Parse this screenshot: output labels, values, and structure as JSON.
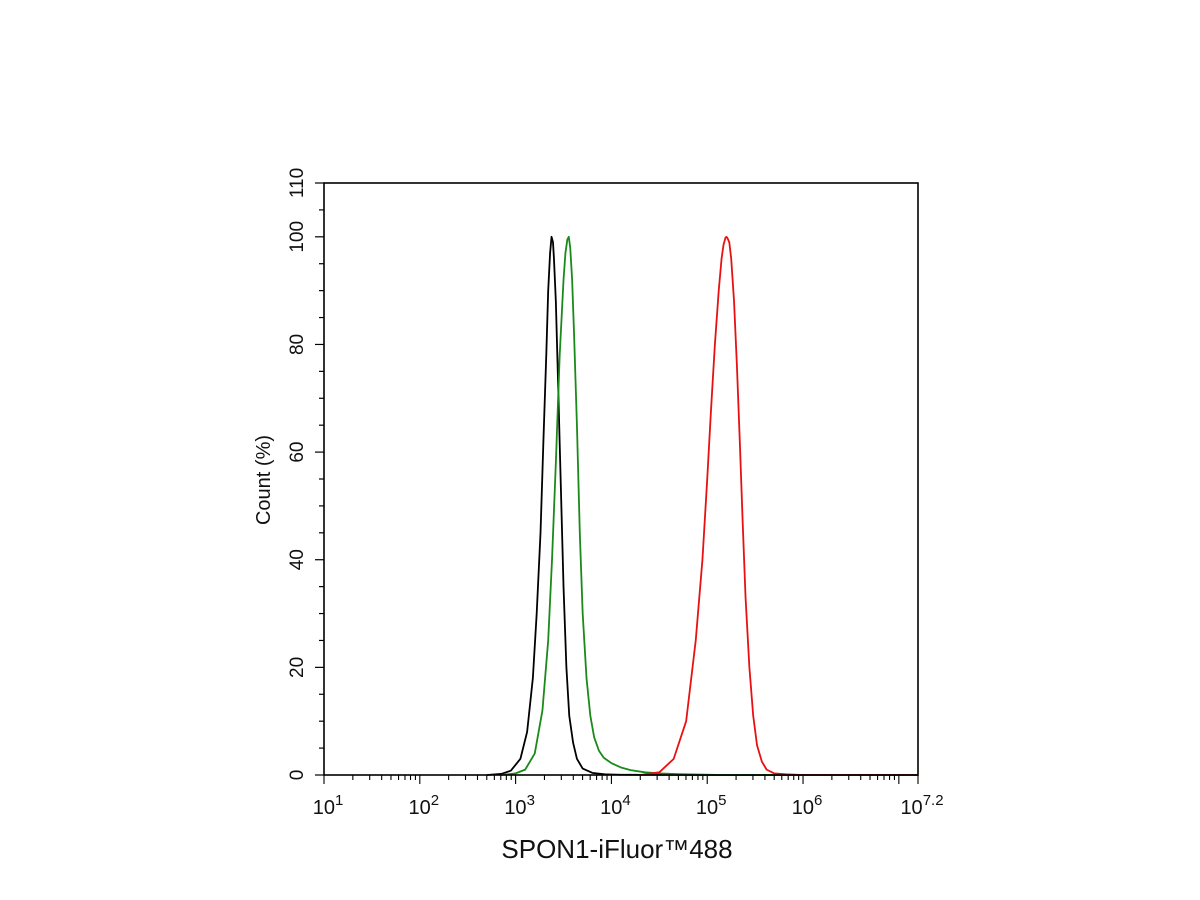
{
  "chart_data": {
    "type": "line",
    "title": "",
    "xlabel": "SPON1-iFluor™488",
    "ylabel": "Count (%)",
    "x_scale": "log10",
    "x_range_exponent": [
      1,
      7.2
    ],
    "x_tick_exponents": [
      1,
      2,
      3,
      4,
      5,
      6,
      7.2
    ],
    "x_tick_labels": [
      {
        "base": "10",
        "exp": "1"
      },
      {
        "base": "10",
        "exp": "2"
      },
      {
        "base": "10",
        "exp": "3"
      },
      {
        "base": "10",
        "exp": "4"
      },
      {
        "base": "10",
        "exp": "5"
      },
      {
        "base": "10",
        "exp": "6"
      },
      {
        "base": "10",
        "exp": "7.2"
      }
    ],
    "ylim": [
      0,
      110
    ],
    "y_ticks": [
      0,
      20,
      40,
      60,
      80,
      100,
      110
    ],
    "y_tick_labels": [
      "0",
      "20",
      "40",
      "60",
      "80",
      "100",
      "110"
    ],
    "grid": false,
    "legend": "none",
    "series": [
      {
        "color": "#000000",
        "x_log10": [
          2.7,
          2.85,
          2.95,
          3.05,
          3.12,
          3.18,
          3.22,
          3.26,
          3.29,
          3.32,
          3.34,
          3.36,
          3.375,
          3.39,
          3.4,
          3.42,
          3.44,
          3.47,
          3.5,
          3.53,
          3.56,
          3.6,
          3.64,
          3.7,
          3.8,
          3.95,
          4.1,
          4.3,
          4.6,
          5.0,
          7.2
        ],
        "y": [
          0,
          0.2,
          0.8,
          3,
          8,
          18,
          30,
          45,
          62,
          78,
          90,
          97,
          100,
          99,
          96,
          88,
          75,
          55,
          35,
          20,
          11,
          6,
          3,
          1.2,
          0.4,
          0.1,
          0.05,
          0.03,
          0.02,
          0,
          0
        ]
      },
      {
        "color": "#1a8a1a",
        "x_log10": [
          2.85,
          3.0,
          3.1,
          3.2,
          3.28,
          3.34,
          3.38,
          3.42,
          3.46,
          3.5,
          3.52,
          3.54,
          3.555,
          3.57,
          3.59,
          3.61,
          3.64,
          3.67,
          3.7,
          3.74,
          3.78,
          3.82,
          3.87,
          3.92,
          4.0,
          4.1,
          4.2,
          4.35,
          4.5,
          4.7,
          4.9,
          5.1,
          7.2
        ],
        "y": [
          0,
          0.3,
          1,
          4,
          12,
          25,
          40,
          58,
          78,
          92,
          97,
          99.5,
          100,
          98,
          92,
          82,
          65,
          45,
          30,
          18,
          11,
          7,
          4.5,
          3.2,
          2.2,
          1.4,
          0.9,
          0.5,
          0.3,
          0.15,
          0.08,
          0.03,
          0
        ]
      },
      {
        "color": "#e81010",
        "x_log10": [
          4.3,
          4.5,
          4.65,
          4.78,
          4.88,
          4.95,
          5.0,
          5.04,
          5.08,
          5.12,
          5.15,
          5.17,
          5.19,
          5.2,
          5.21,
          5.23,
          5.25,
          5.28,
          5.31,
          5.34,
          5.37,
          5.4,
          5.44,
          5.48,
          5.52,
          5.57,
          5.62,
          5.7,
          5.85,
          6.0,
          7.2
        ],
        "y": [
          0,
          0.5,
          3,
          10,
          25,
          40,
          55,
          68,
          80,
          90,
          96,
          98.5,
          99.8,
          100,
          99.8,
          99,
          96,
          88,
          76,
          62,
          47,
          33,
          20,
          11,
          5.5,
          2.5,
          1,
          0.3,
          0.1,
          0,
          0
        ]
      }
    ]
  }
}
